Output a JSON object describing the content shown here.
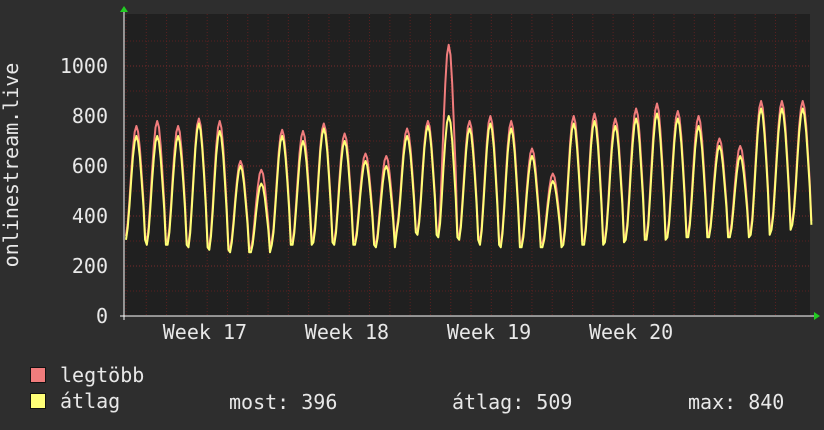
{
  "chart_data": {
    "type": "line",
    "ylabel": "onlinestream.live",
    "ylim": [
      0,
      1200
    ],
    "yticks": [
      0,
      200,
      400,
      600,
      800,
      1000
    ],
    "x_week_labels": [
      "Week 17",
      "Week 18",
      "Week 19",
      "Week 20"
    ],
    "days": 36,
    "series": [
      {
        "name": "legtöbb",
        "color": "#f07c7c",
        "daily_peaks": [
          760,
          780,
          760,
          790,
          780,
          620,
          585,
          745,
          740,
          770,
          730,
          650,
          640,
          750,
          780,
          1085,
          780,
          800,
          780,
          670,
          570,
          800,
          810,
          790,
          830,
          850,
          820,
          800,
          710,
          680,
          860,
          860,
          860
        ]
      },
      {
        "name": "átlag",
        "color": "#ffff77",
        "daily_peaks": [
          720,
          720,
          720,
          770,
          740,
          600,
          530,
          720,
          700,
          750,
          700,
          620,
          600,
          720,
          760,
          800,
          750,
          770,
          750,
          640,
          540,
          770,
          780,
          760,
          790,
          810,
          790,
          760,
          680,
          640,
          830,
          830,
          830
        ]
      }
    ],
    "daily_troughs": [
      320,
      300,
      300,
      290,
      280,
      270,
      270,
      300,
      300,
      310,
      300,
      300,
      290,
      350,
      340,
      330,
      320,
      300,
      290,
      290,
      290,
      300,
      300,
      310,
      320,
      320,
      330,
      330,
      330,
      330,
      340,
      360,
      380
    ]
  },
  "legend": {
    "max_label": "legtöbb",
    "avg_label": "átlag",
    "now_text": "most: 396",
    "avg_text": "átlag: 509",
    "max_text": "max: 840"
  },
  "colors": {
    "background": "#2e2e2e",
    "plot_background": "#202020",
    "grid": "#5a2020",
    "axis": "#ffffff",
    "arrow": "#22cc22"
  }
}
